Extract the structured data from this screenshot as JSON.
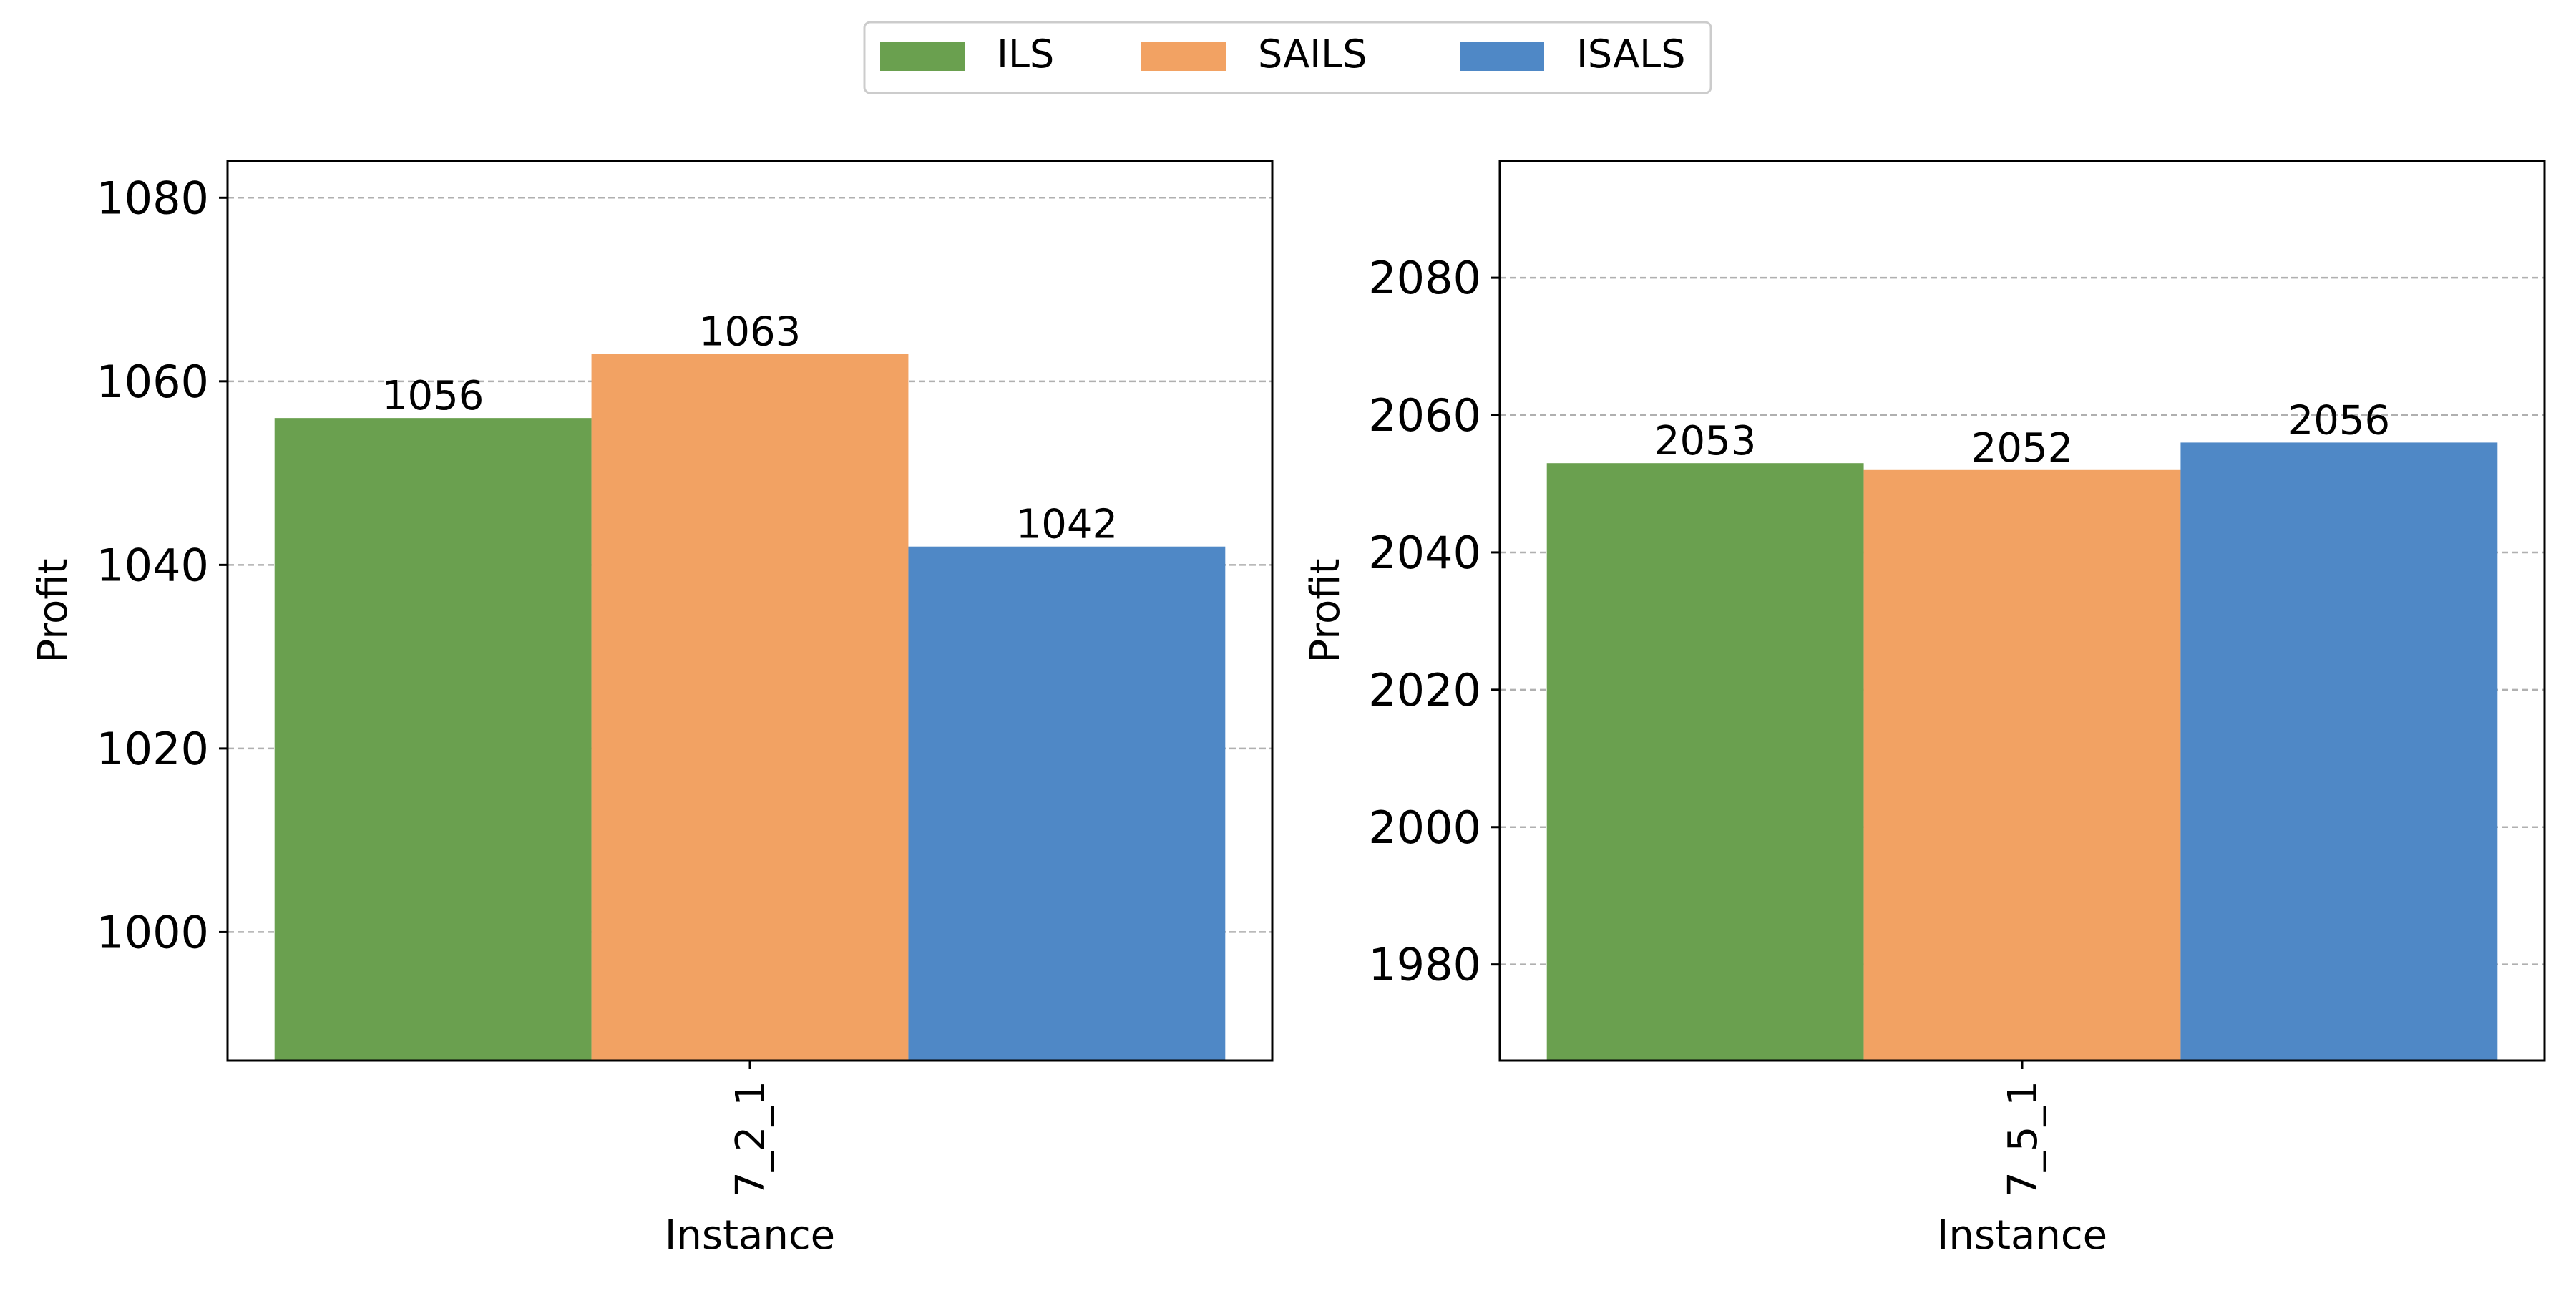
{
  "legend": {
    "placement": "top-center",
    "entries": [
      {
        "label": "ILS",
        "color": "#6aa04f"
      },
      {
        "label": "SAILS",
        "color": "#f2a263"
      },
      {
        "label": "ISALS",
        "color": "#4f88c6"
      }
    ]
  },
  "chart_data": [
    {
      "type": "bar",
      "categories": [
        "7_2_1"
      ],
      "series": [
        {
          "name": "ILS",
          "values": [
            1056
          ]
        },
        {
          "name": "SAILS",
          "values": [
            1063
          ]
        },
        {
          "name": "ISALS",
          "values": [
            1042
          ]
        }
      ],
      "data_labels": [
        "1056",
        "1063",
        "1042"
      ],
      "xlabel": "Instance",
      "ylabel": "Profit",
      "ylim": [
        986,
        1084
      ],
      "yticks": [
        1000,
        1020,
        1040,
        1060,
        1080
      ],
      "grid": "y dashed"
    },
    {
      "type": "bar",
      "categories": [
        "7_5_1"
      ],
      "series": [
        {
          "name": "ILS",
          "values": [
            2053
          ]
        },
        {
          "name": "SAILS",
          "values": [
            2052
          ]
        },
        {
          "name": "ISALS",
          "values": [
            2056
          ]
        }
      ],
      "data_labels": [
        "2053",
        "2052",
        "2056"
      ],
      "xlabel": "Instance",
      "ylabel": "Profit",
      "ylim": [
        1966,
        2097
      ],
      "yticks": [
        1980,
        2000,
        2020,
        2040,
        2060,
        2080
      ],
      "grid": "y dashed"
    }
  ]
}
